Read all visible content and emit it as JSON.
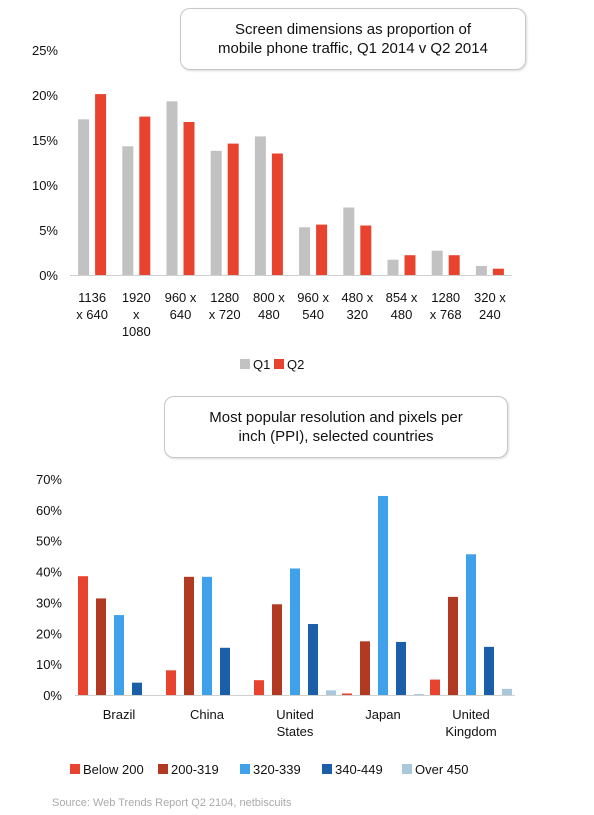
{
  "chart_data": [
    {
      "type": "bar",
      "title_lines": [
        "Screen dimensions as proportion of",
        "mobile phone traffic, Q1 2014 v Q2 2014"
      ],
      "categories": [
        [
          "1136",
          "x 640"
        ],
        [
          "1920",
          "x",
          "1080"
        ],
        [
          "960 x",
          "640"
        ],
        [
          "1280",
          "x 720"
        ],
        [
          "800 x",
          "480"
        ],
        [
          "960 x",
          "540"
        ],
        [
          "480 x",
          "320"
        ],
        [
          "854 x",
          "480"
        ],
        [
          "1280",
          "x 768"
        ],
        [
          "320 x",
          "240"
        ]
      ],
      "series": [
        {
          "name": "Q1",
          "color": "#c2c2c2",
          "values": [
            17.3,
            14.3,
            19.3,
            13.8,
            15.4,
            5.3,
            7.5,
            1.7,
            2.7,
            1.0
          ]
        },
        {
          "name": "Q2",
          "color": "#e8432e",
          "values": [
            20.1,
            17.6,
            17.0,
            14.6,
            13.5,
            5.6,
            5.5,
            2.2,
            2.2,
            0.7
          ]
        }
      ],
      "ylim": [
        0,
        25
      ],
      "yticks": [
        "0%",
        "5%",
        "10%",
        "15%",
        "20%",
        "25%"
      ],
      "grid": false,
      "legend_position": "bottom"
    },
    {
      "type": "bar",
      "title_lines": [
        "Most popular resolution and pixels per",
        "inch (PPI), selected countries"
      ],
      "categories": [
        [
          "Brazil"
        ],
        [
          "China"
        ],
        [
          "United",
          "States"
        ],
        [
          "Japan"
        ],
        [
          "United",
          "Kingdom"
        ]
      ],
      "series": [
        {
          "name": "Below 200",
          "color": "#e8432e",
          "values": [
            38.5,
            8.0,
            4.8,
            0.5,
            5.0
          ]
        },
        {
          "name": "200-319",
          "color": "#b33a22",
          "values": [
            31.3,
            38.3,
            29.4,
            17.4,
            31.8
          ]
        },
        {
          "name": "320-339",
          "color": "#3fa1ea",
          "values": [
            25.9,
            38.3,
            41.0,
            64.5,
            45.6
          ]
        },
        {
          "name": "340-449",
          "color": "#1b5fa8",
          "values": [
            4.0,
            15.3,
            23.0,
            17.2,
            15.6
          ]
        },
        {
          "name": "Over 450",
          "color": "#a9c8dc",
          "values": [
            0.0,
            0.0,
            1.5,
            0.3,
            2.0
          ]
        }
      ],
      "ylim": [
        0,
        70
      ],
      "yticks": [
        "0%",
        "10%",
        "20%",
        "30%",
        "40%",
        "50%",
        "60%",
        "70%"
      ],
      "grid": false,
      "legend_position": "bottom"
    }
  ],
  "source": "Source: Web Trends Report Q2 2104, netbiscuits"
}
